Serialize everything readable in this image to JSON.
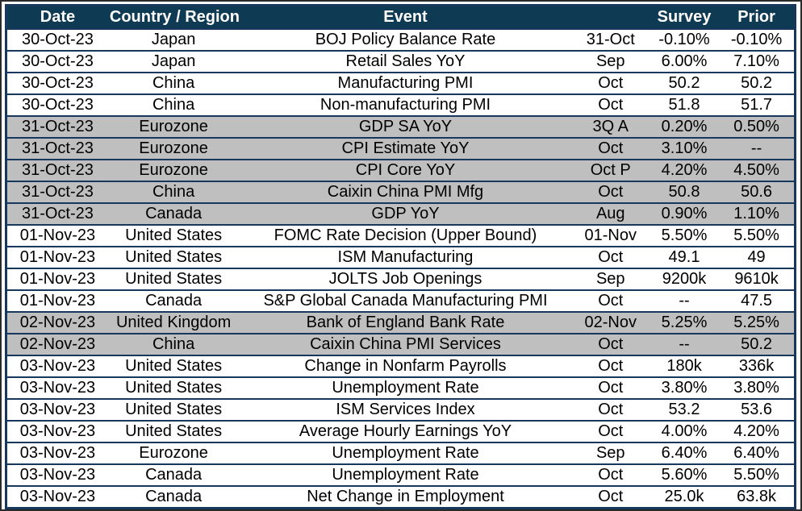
{
  "colors": {
    "header_bg": "#0e3a53",
    "header_text": "#ffffff",
    "grid_line": "#17375d",
    "row_bg": "#ffffff",
    "shaded_row_bg": "#bfbfbf",
    "body_text": "#000000"
  },
  "table": {
    "columns": [
      {
        "key": "date",
        "label": "Date"
      },
      {
        "key": "country",
        "label": "Country / Region"
      },
      {
        "key": "event",
        "label": "Event"
      },
      {
        "key": "period",
        "label": ""
      },
      {
        "key": "survey",
        "label": "Survey"
      },
      {
        "key": "prior",
        "label": "Prior"
      }
    ],
    "rows": [
      {
        "date": "30-Oct-23",
        "country": "Japan",
        "event": "BOJ Policy Balance Rate",
        "period": "31-Oct",
        "survey": "-0.10%",
        "prior": "-0.10%",
        "shaded": false
      },
      {
        "date": "30-Oct-23",
        "country": "Japan",
        "event": "Retail Sales YoY",
        "period": "Sep",
        "survey": "6.00%",
        "prior": "7.10%",
        "shaded": false
      },
      {
        "date": "30-Oct-23",
        "country": "China",
        "event": "Manufacturing PMI",
        "period": "Oct",
        "survey": "50.2",
        "prior": "50.2",
        "shaded": false
      },
      {
        "date": "30-Oct-23",
        "country": "China",
        "event": "Non-manufacturing PMI",
        "period": "Oct",
        "survey": "51.8",
        "prior": "51.7",
        "shaded": false
      },
      {
        "date": "31-Oct-23",
        "country": "Eurozone",
        "event": "GDP SA YoY",
        "period": "3Q A",
        "survey": "0.20%",
        "prior": "0.50%",
        "shaded": true
      },
      {
        "date": "31-Oct-23",
        "country": "Eurozone",
        "event": "CPI Estimate YoY",
        "period": "Oct",
        "survey": "3.10%",
        "prior": "--",
        "shaded": true
      },
      {
        "date": "31-Oct-23",
        "country": "Eurozone",
        "event": "CPI Core YoY",
        "period": "Oct P",
        "survey": "4.20%",
        "prior": "4.50%",
        "shaded": true
      },
      {
        "date": "31-Oct-23",
        "country": "China",
        "event": "Caixin China PMI Mfg",
        "period": "Oct",
        "survey": "50.8",
        "prior": "50.6",
        "shaded": true
      },
      {
        "date": "31-Oct-23",
        "country": "Canada",
        "event": "GDP YoY",
        "period": "Aug",
        "survey": "0.90%",
        "prior": "1.10%",
        "shaded": true
      },
      {
        "date": "01-Nov-23",
        "country": "United States",
        "event": "FOMC Rate Decision (Upper Bound)",
        "period": "01-Nov",
        "survey": "5.50%",
        "prior": "5.50%",
        "shaded": false
      },
      {
        "date": "01-Nov-23",
        "country": "United States",
        "event": "ISM Manufacturing",
        "period": "Oct",
        "survey": "49.1",
        "prior": "49",
        "shaded": false
      },
      {
        "date": "01-Nov-23",
        "country": "United States",
        "event": "JOLTS Job Openings",
        "period": "Sep",
        "survey": "9200k",
        "prior": "9610k",
        "shaded": false
      },
      {
        "date": "01-Nov-23",
        "country": "Canada",
        "event": "S&P Global Canada Manufacturing PMI",
        "period": "Oct",
        "survey": "--",
        "prior": "47.5",
        "shaded": false
      },
      {
        "date": "02-Nov-23",
        "country": "United Kingdom",
        "event": "Bank of England Bank Rate",
        "period": "02-Nov",
        "survey": "5.25%",
        "prior": "5.25%",
        "shaded": true
      },
      {
        "date": "02-Nov-23",
        "country": "China",
        "event": "Caixin China PMI Services",
        "period": "Oct",
        "survey": "--",
        "prior": "50.2",
        "shaded": true
      },
      {
        "date": "03-Nov-23",
        "country": "United States",
        "event": "Change in Nonfarm Payrolls",
        "period": "Oct",
        "survey": "180k",
        "prior": "336k",
        "shaded": false
      },
      {
        "date": "03-Nov-23",
        "country": "United States",
        "event": "Unemployment Rate",
        "period": "Oct",
        "survey": "3.80%",
        "prior": "3.80%",
        "shaded": false
      },
      {
        "date": "03-Nov-23",
        "country": "United States",
        "event": "ISM Services Index",
        "period": "Oct",
        "survey": "53.2",
        "prior": "53.6",
        "shaded": false
      },
      {
        "date": "03-Nov-23",
        "country": "United States",
        "event": "Average Hourly Earnings YoY",
        "period": "Oct",
        "survey": "4.00%",
        "prior": "4.20%",
        "shaded": false
      },
      {
        "date": "03-Nov-23",
        "country": "Eurozone",
        "event": "Unemployment Rate",
        "period": "Sep",
        "survey": "6.40%",
        "prior": "6.40%",
        "shaded": false
      },
      {
        "date": "03-Nov-23",
        "country": "Canada",
        "event": "Unemployment Rate",
        "period": "Oct",
        "survey": "5.60%",
        "prior": "5.50%",
        "shaded": false
      },
      {
        "date": "03-Nov-23",
        "country": "Canada",
        "event": "Net Change in Employment",
        "period": "Oct",
        "survey": "25.0k",
        "prior": "63.8k",
        "shaded": false
      }
    ]
  }
}
